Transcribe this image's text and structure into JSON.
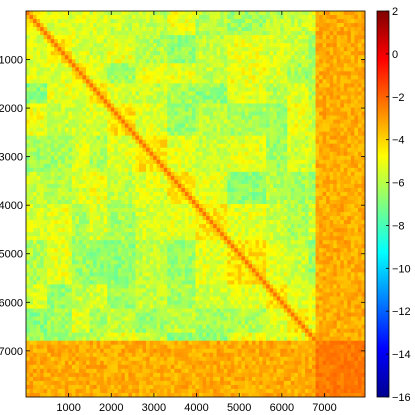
{
  "chart_data": {
    "type": "heatmap",
    "title": "",
    "xlabel": "",
    "ylabel": "",
    "x_ticks": [
      1000,
      2000,
      3000,
      4000,
      5000,
      6000,
      7000
    ],
    "y_ticks": [
      1000,
      2000,
      3000,
      4000,
      5000,
      6000,
      7000
    ],
    "xlim": [
      1,
      7950
    ],
    "ylim": [
      1,
      7950
    ],
    "y_axis_direction": "top-to-bottom",
    "colormap": "jet",
    "color_range": [
      -16,
      2
    ],
    "colorbar_ticks": [
      2,
      0,
      -2,
      -4,
      -6,
      -8,
      -10,
      -12,
      -14,
      -16
    ],
    "colorbar_placement": "right",
    "matrix_description": {
      "symmetric": true,
      "diagonal_value": -2,
      "background_value": -6,
      "block_boundaries": [
        1,
        500,
        1100,
        1500,
        1900,
        2600,
        3300,
        4000,
        4700,
        5600,
        6100,
        6600,
        6750,
        7950
      ],
      "dense_block_start": 6750,
      "dense_block_value": -3
    }
  },
  "colors": {
    "frame": "#000000",
    "background": "#ffffff"
  }
}
